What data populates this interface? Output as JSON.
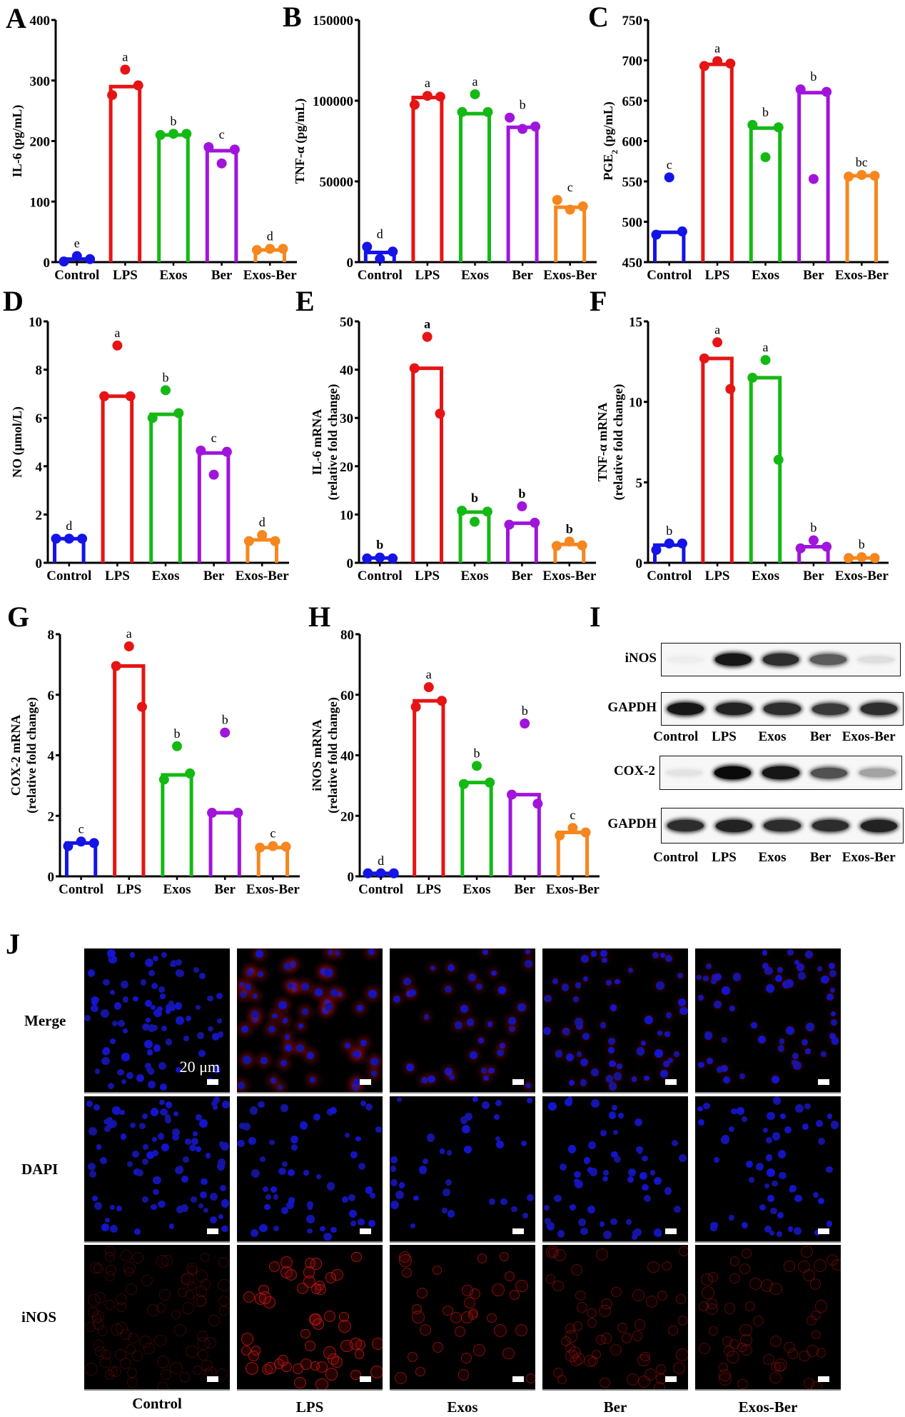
{
  "groups": [
    "Control",
    "LPS",
    "Exos",
    "Ber",
    "Exos-Ber"
  ],
  "group_colors": [
    "#1414e6",
    "#e61414",
    "#14b914",
    "#a014dc",
    "#f5871e"
  ],
  "panels": {
    "A": {
      "letter": "A"
    },
    "B": {
      "letter": "B"
    },
    "C": {
      "letter": "C"
    },
    "D": {
      "letter": "D"
    },
    "E": {
      "letter": "E"
    },
    "F": {
      "letter": "F"
    },
    "G": {
      "letter": "G"
    },
    "H": {
      "letter": "H"
    },
    "I": {
      "letter": "I"
    },
    "J": {
      "letter": "J"
    }
  },
  "chart_data": [
    {
      "id": "A",
      "type": "bar",
      "title": "",
      "xlabel": "",
      "ylabel": "IL-6 (pg/mL)",
      "categories": [
        "Control",
        "LPS",
        "Exos",
        "Ber",
        "Exos-Ber"
      ],
      "ylim": [
        0,
        400
      ],
      "yticks": [
        0,
        100,
        200,
        300,
        400
      ],
      "values": [
        5,
        290,
        210,
        184,
        20
      ],
      "points": [
        [
          1,
          10,
          5
        ],
        [
          276,
          318,
          292
        ],
        [
          210,
          212,
          212
        ],
        [
          190,
          163,
          186
        ],
        [
          20,
          22,
          22
        ]
      ],
      "significance": [
        "e",
        "a",
        "b",
        "c",
        "d"
      ],
      "sig_bold": false
    },
    {
      "id": "B",
      "type": "bar",
      "title": "",
      "xlabel": "",
      "ylabel": "TNF-α (pg/mL)",
      "categories": [
        "Control",
        "LPS",
        "Exos",
        "Ber",
        "Exos-Ber"
      ],
      "ylim": [
        0,
        150000
      ],
      "yticks": [
        0,
        50000,
        100000,
        150000
      ],
      "values": [
        6000,
        102000,
        92000,
        83500,
        34000
      ],
      "points": [
        [
          9500,
          2000,
          6500
        ],
        [
          97500,
          103000,
          102500
        ],
        [
          93000,
          104000,
          93000
        ],
        [
          89500,
          82500,
          84000
        ],
        [
          38500,
          32500,
          34500
        ]
      ],
      "significance": [
        "d",
        "a",
        "a",
        "b",
        "c"
      ],
      "sig_bold": false
    },
    {
      "id": "C",
      "type": "bar",
      "title": "",
      "xlabel": "",
      "ylabel": "PGE2 (pg/mL)",
      "ylabel_parts": [
        "PGE",
        "2",
        " (pg/mL)"
      ],
      "categories": [
        "Control",
        "LPS",
        "Exos",
        "Ber",
        "Exos-Ber"
      ],
      "ylim": [
        450,
        750
      ],
      "yticks": [
        450,
        500,
        550,
        600,
        650,
        700,
        750
      ],
      "values": [
        487,
        695,
        616,
        660,
        557
      ],
      "points": [
        [
          484,
          555,
          488
        ],
        [
          693,
          699,
          696
        ],
        [
          620,
          580,
          617
        ],
        [
          664,
          553,
          661
        ],
        [
          556,
          558,
          557
        ]
      ],
      "significance": [
        "c",
        "a",
        "b",
        "b",
        "bc"
      ],
      "sig_bold": false
    },
    {
      "id": "D",
      "type": "bar",
      "title": "",
      "xlabel": "",
      "ylabel": "NO (μmol/L)",
      "categories": [
        "Control",
        "LPS",
        "Exos",
        "Ber",
        "Exos-Ber"
      ],
      "ylim": [
        0,
        10
      ],
      "yticks": [
        0,
        2,
        4,
        6,
        8,
        10
      ],
      "values": [
        1.0,
        6.9,
        6.15,
        4.55,
        0.95
      ],
      "points": [
        [
          1.0,
          1.0,
          1.0
        ],
        [
          6.9,
          9.0,
          6.9
        ],
        [
          6.0,
          7.15,
          6.2
        ],
        [
          4.65,
          3.65,
          4.6
        ],
        [
          0.9,
          1.15,
          0.9
        ]
      ],
      "significance": [
        "d",
        "a",
        "b",
        "c",
        "d"
      ],
      "sig_bold": false
    },
    {
      "id": "E",
      "type": "bar",
      "title": "",
      "xlabel": "",
      "ylabel": "IL-6 mRNA (relative fold change)",
      "ylabel_lines": [
        "IL-6 mRNA",
        "(relative fold change)"
      ],
      "categories": [
        "Control",
        "LPS",
        "Exos",
        "Ber",
        "Exos-Ber"
      ],
      "ylim": [
        0,
        50
      ],
      "yticks": [
        0,
        10,
        20,
        30,
        40,
        50
      ],
      "values": [
        1.0,
        40.3,
        10.5,
        8.2,
        3.8
      ],
      "points": [
        [
          0.9,
          1.1,
          0.9
        ],
        [
          40.3,
          46.8,
          30.9
        ],
        [
          10.8,
          8.5,
          10.6
        ],
        [
          7.9,
          11.7,
          8.3
        ],
        [
          3.5,
          4.4,
          3.6
        ]
      ],
      "significance": [
        "b",
        "a",
        "b",
        "b",
        "b"
      ],
      "sig_bold": true
    },
    {
      "id": "F",
      "type": "bar",
      "title": "",
      "xlabel": "",
      "ylabel": "TNF-α mRNA (relative fold change)",
      "ylabel_lines": [
        "TNF-α mRNA",
        "(relative fold change)"
      ],
      "categories": [
        "Control",
        "LPS",
        "Exos",
        "Ber",
        "Exos-Ber"
      ],
      "ylim": [
        0,
        15
      ],
      "yticks": [
        0,
        5,
        10,
        15
      ],
      "values": [
        1.1,
        12.7,
        11.5,
        1.0,
        0.3
      ],
      "points": [
        [
          0.8,
          1.2,
          1.2
        ],
        [
          12.7,
          13.7,
          10.8
        ],
        [
          11.5,
          12.6,
          6.4
        ],
        [
          0.9,
          1.4,
          1.0
        ],
        [
          0.3,
          0.35,
          0.3
        ]
      ],
      "significance": [
        "b",
        "a",
        "a",
        "b",
        "b"
      ],
      "sig_bold": false
    },
    {
      "id": "G",
      "type": "bar",
      "title": "",
      "xlabel": "",
      "ylabel": "COX-2 mRNA (relative fold change)",
      "ylabel_lines": [
        "COX-2 mRNA",
        "(relative fold change)"
      ],
      "categories": [
        "Control",
        "LPS",
        "Exos",
        "Ber",
        "Exos-Ber"
      ],
      "ylim": [
        0,
        8
      ],
      "yticks": [
        0,
        2,
        4,
        6,
        8
      ],
      "values": [
        1.1,
        6.95,
        3.35,
        2.1,
        0.95
      ],
      "points": [
        [
          1.0,
          1.15,
          1.1
        ],
        [
          6.95,
          7.6,
          5.6
        ],
        [
          3.2,
          4.3,
          3.4
        ],
        [
          2.1,
          4.75,
          2.1
        ],
        [
          0.95,
          1.0,
          0.98
        ]
      ],
      "significance": [
        "c",
        "a",
        "b",
        "b",
        "c"
      ],
      "sig_bold": false
    },
    {
      "id": "H",
      "type": "bar",
      "title": "",
      "xlabel": "",
      "ylabel": "iNOS mRNA (relative fold change)",
      "ylabel_lines": [
        "iNOS mRNA",
        "(relative fold change)"
      ],
      "categories": [
        "Control",
        "LPS",
        "Exos",
        "Ber",
        "Exos-Ber"
      ],
      "ylim": [
        0,
        80
      ],
      "yticks": [
        0,
        20,
        40,
        60,
        80
      ],
      "values": [
        1.0,
        58,
        31,
        27,
        14.5
      ],
      "points": [
        [
          1.0,
          1.0,
          1.0
        ],
        [
          56,
          62.5,
          58
        ],
        [
          30.5,
          36.5,
          31
        ],
        [
          27,
          50.5,
          24
        ],
        [
          13.5,
          16,
          14.5
        ]
      ],
      "significance": [
        "d",
        "a",
        "b",
        "b",
        "c"
      ],
      "sig_bold": false
    }
  ],
  "western_blot": {
    "letter": "I",
    "blocks": [
      {
        "label": "iNOS",
        "intensities": [
          0.03,
          0.95,
          0.85,
          0.65,
          0.1
        ]
      },
      {
        "label": "GAPDH",
        "intensities": [
          0.95,
          0.9,
          0.85,
          0.8,
          0.85
        ]
      },
      {
        "label": "COX-2",
        "intensities": [
          0.08,
          1.0,
          0.95,
          0.7,
          0.35
        ]
      },
      {
        "label": "GAPDH",
        "intensities": [
          0.85,
          0.9,
          0.85,
          0.85,
          0.9
        ]
      }
    ],
    "lane_labels": [
      "Control",
      "LPS",
      "Exos",
      "Ber",
      "Exos-Ber"
    ]
  },
  "immunofluorescence": {
    "letter": "J",
    "rows": [
      "Merge",
      "DAPI",
      "iNOS"
    ],
    "columns": [
      "Control",
      "LPS",
      "Exos",
      "Ber",
      "Exos-Ber"
    ],
    "scale_bar_label": "20 μm",
    "red_intensity": [
      0.1,
      0.75,
      0.5,
      0.3,
      0.25
    ]
  }
}
